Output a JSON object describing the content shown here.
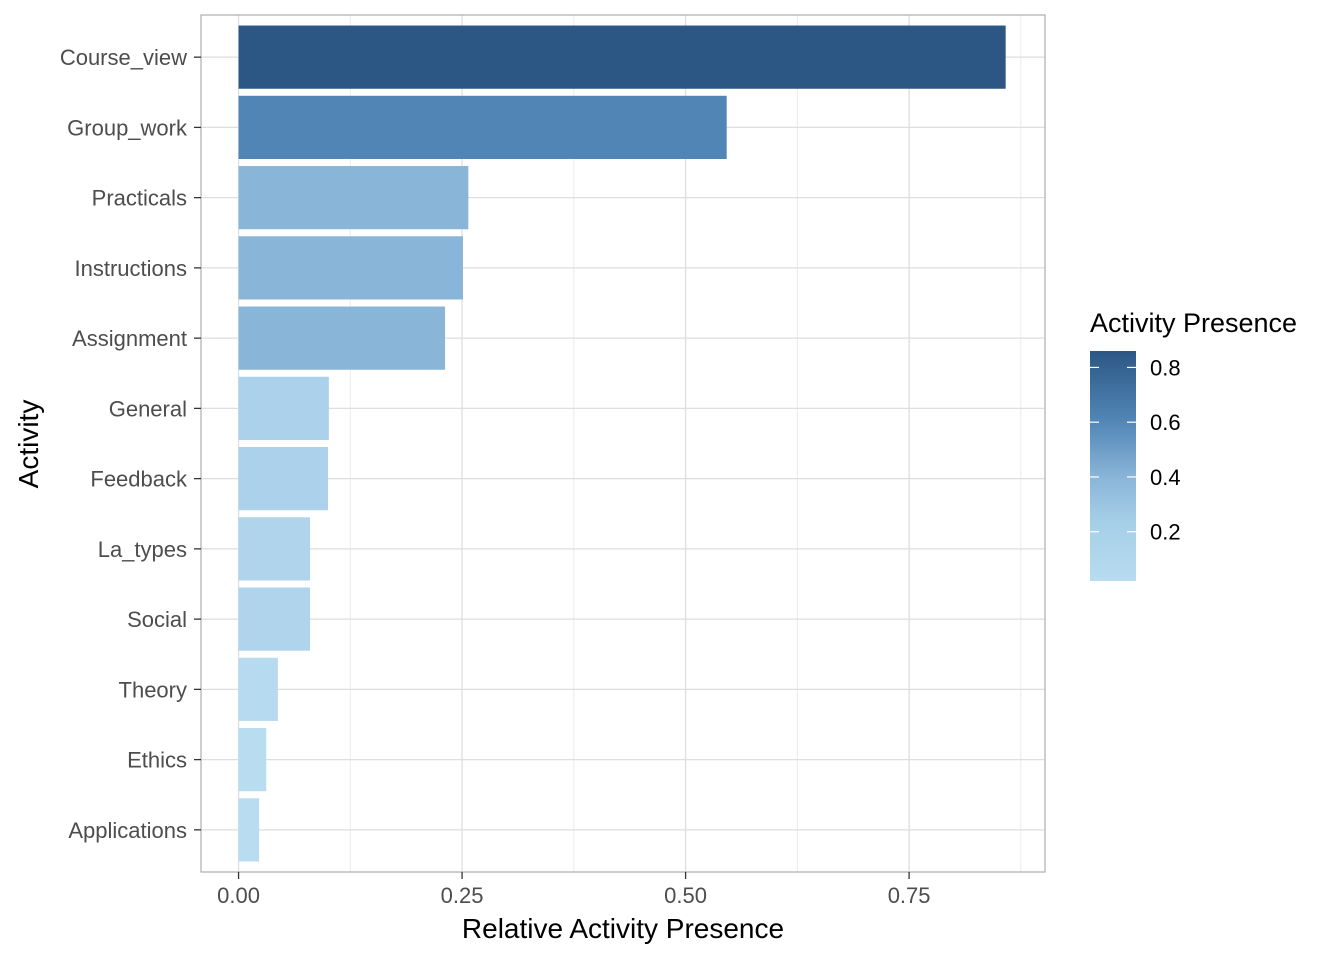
{
  "chart_data": {
    "type": "bar",
    "orientation": "horizontal",
    "categories": [
      "Course_view",
      "Group_work",
      "Practicals",
      "Instructions",
      "Assignment",
      "General",
      "Feedback",
      "La_types",
      "Social",
      "Theory",
      "Ethics",
      "Applications"
    ],
    "values": [
      0.858,
      0.546,
      0.257,
      0.251,
      0.231,
      0.101,
      0.1,
      0.08,
      0.08,
      0.044,
      0.031,
      0.023
    ],
    "xlabel": "Relative Activity Presence",
    "ylabel": "Activity",
    "xlim": [
      -0.042,
      0.902
    ],
    "xticks": [
      0,
      0.25,
      0.5,
      0.75
    ],
    "xtick_labels": [
      "0.00",
      "0.25",
      "0.50",
      "0.75"
    ],
    "grid": true,
    "legend": {
      "title": "Activity Presence",
      "placement": "right",
      "range": [
        0.02,
        0.86
      ],
      "ticks": [
        0.2,
        0.4,
        0.6,
        0.8
      ],
      "tick_labels": [
        "0.2",
        "0.4",
        "0.6",
        "0.8"
      ],
      "colors": {
        "low": "#b8dcf0",
        "lowmid": "#a6cfe8",
        "mid": "#89b5d8",
        "highmid": "#5185b5",
        "high": "#2c5784"
      }
    },
    "bar_colors": [
      "#2c5784",
      "#5185b5",
      "#89b5d8",
      "#89b5d8",
      "#89b5d8",
      "#abd1eb",
      "#abd1eb",
      "#b0d4ec",
      "#b0d4ec",
      "#b6dbf0",
      "#b8dcf0",
      "#b8dcf0"
    ]
  }
}
